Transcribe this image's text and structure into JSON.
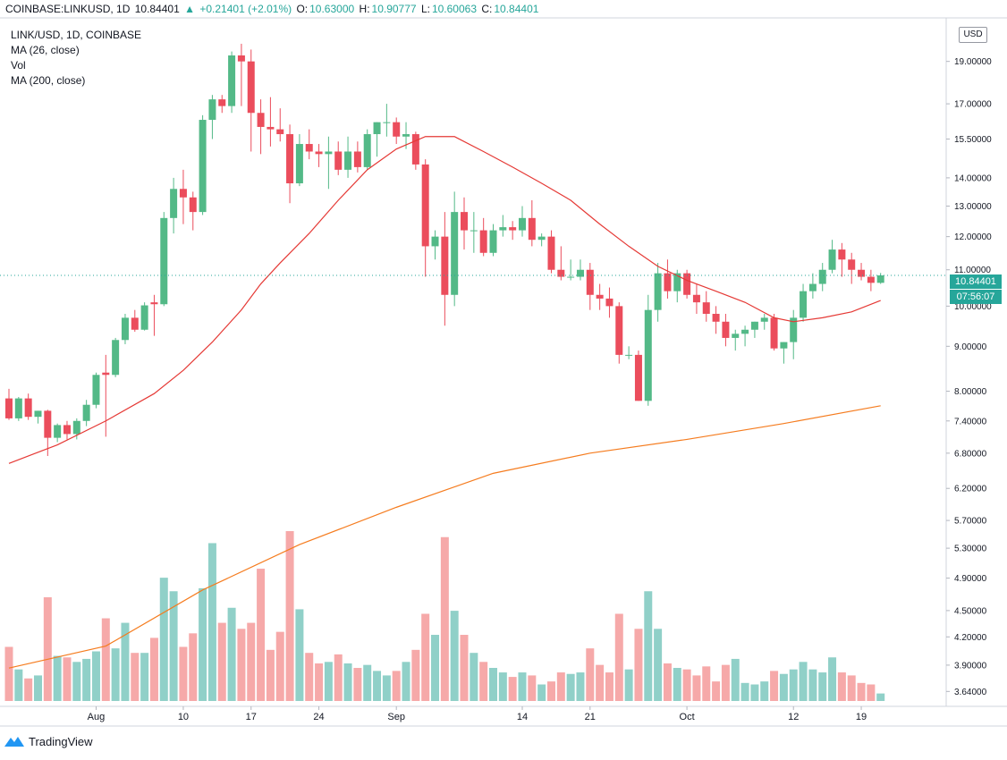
{
  "header": {
    "symbol": "COINBASE:LINKUSD, 1D",
    "last": "10.84401",
    "change": "+0.21401 (+2.01%)",
    "o_label": "O:",
    "o": "10.63000",
    "h_label": "H:",
    "h": "10.90777",
    "l_label": "L:",
    "l": "10.60063",
    "c_label": "C:",
    "c": "10.84401",
    "up_arrow": "▲"
  },
  "legend": {
    "pair": "LINK/USD, 1D, COINBASE",
    "ma26": "MA (26, close)",
    "vol": "Vol",
    "ma200": "MA (200, close)"
  },
  "currency_badge": "USD",
  "last_price_tag": "10.84401",
  "countdown_tag": "07:56:07",
  "brand": "TradingView",
  "colors": {
    "up": "#53b987",
    "down": "#eb4d5c",
    "vol_up": "#90d0c8",
    "vol_down": "#f6a9a9",
    "ma26": "#e53935",
    "ma200": "#f57c1f",
    "last_line": "#26a69a"
  },
  "chart_data": {
    "type": "candlestick",
    "y_scale": "log",
    "ylim": [
      3.55,
      21.0
    ],
    "y_ticks": [
      "19.00000",
      "17.00000",
      "15.50000",
      "14.00000",
      "13.00000",
      "12.00000",
      "11.00000",
      "10.00000",
      "9.00000",
      "8.00000",
      "7.40000",
      "6.80000",
      "6.20000",
      "5.70000",
      "5.30000",
      "4.90000",
      "4.50000",
      "4.20000",
      "3.90000",
      "3.64000"
    ],
    "x_ticks": [
      {
        "label": "Aug",
        "index": 9
      },
      {
        "label": "10",
        "index": 18
      },
      {
        "label": "17",
        "index": 25
      },
      {
        "label": "24",
        "index": 32
      },
      {
        "label": "Sep",
        "index": 40
      },
      {
        "label": "14",
        "index": 53
      },
      {
        "label": "21",
        "index": 60
      },
      {
        "label": "Oct",
        "index": 70
      },
      {
        "label": "12",
        "index": 81
      },
      {
        "label": "19",
        "index": 88
      }
    ],
    "candles": [
      {
        "o": 7.85,
        "h": 8.05,
        "l": 7.42,
        "c": 7.45,
        "v": 0.36
      },
      {
        "o": 7.45,
        "h": 7.88,
        "l": 7.4,
        "c": 7.85,
        "v": 0.21
      },
      {
        "o": 7.85,
        "h": 7.95,
        "l": 7.42,
        "c": 7.48,
        "v": 0.15
      },
      {
        "o": 7.48,
        "h": 7.6,
        "l": 7.35,
        "c": 7.6,
        "v": 0.17
      },
      {
        "o": 7.6,
        "h": 7.62,
        "l": 6.75,
        "c": 7.08,
        "v": 0.69
      },
      {
        "o": 7.08,
        "h": 7.35,
        "l": 7.0,
        "c": 7.32,
        "v": 0.3
      },
      {
        "o": 7.32,
        "h": 7.4,
        "l": 7.05,
        "c": 7.15,
        "v": 0.29
      },
      {
        "o": 7.15,
        "h": 7.45,
        "l": 7.05,
        "c": 7.4,
        "v": 0.26
      },
      {
        "o": 7.4,
        "h": 7.82,
        "l": 7.3,
        "c": 7.72,
        "v": 0.28
      },
      {
        "o": 7.72,
        "h": 8.4,
        "l": 7.65,
        "c": 8.35,
        "v": 0.33
      },
      {
        "o": 8.4,
        "h": 8.8,
        "l": 7.1,
        "c": 8.35,
        "v": 0.55
      },
      {
        "o": 8.35,
        "h": 9.2,
        "l": 8.3,
        "c": 9.15,
        "v": 0.35
      },
      {
        "o": 9.15,
        "h": 9.8,
        "l": 9.05,
        "c": 9.7,
        "v": 0.52
      },
      {
        "o": 9.7,
        "h": 9.9,
        "l": 9.35,
        "c": 9.4,
        "v": 0.32
      },
      {
        "o": 9.4,
        "h": 10.1,
        "l": 9.38,
        "c": 10.02,
        "v": 0.32
      },
      {
        "o": 10.1,
        "h": 10.3,
        "l": 9.25,
        "c": 10.05,
        "v": 0.42
      },
      {
        "o": 10.05,
        "h": 12.8,
        "l": 10.0,
        "c": 12.6,
        "v": 0.82
      },
      {
        "o": 12.6,
        "h": 14.0,
        "l": 12.1,
        "c": 13.6,
        "v": 0.73
      },
      {
        "o": 13.6,
        "h": 14.3,
        "l": 12.4,
        "c": 13.3,
        "v": 0.36
      },
      {
        "o": 13.3,
        "h": 13.5,
        "l": 12.2,
        "c": 12.8,
        "v": 0.45
      },
      {
        "o": 12.8,
        "h": 16.5,
        "l": 12.7,
        "c": 16.3,
        "v": 0.75
      },
      {
        "o": 16.3,
        "h": 17.4,
        "l": 15.5,
        "c": 17.2,
        "v": 1.05
      },
      {
        "o": 17.2,
        "h": 17.4,
        "l": 16.6,
        "c": 16.9,
        "v": 0.52
      },
      {
        "o": 16.9,
        "h": 19.5,
        "l": 16.6,
        "c": 19.3,
        "v": 0.62
      },
      {
        "o": 19.3,
        "h": 19.9,
        "l": 16.9,
        "c": 19.0,
        "v": 0.48
      },
      {
        "o": 19.0,
        "h": 19.6,
        "l": 15.0,
        "c": 16.6,
        "v": 0.52
      },
      {
        "o": 16.6,
        "h": 17.2,
        "l": 14.9,
        "c": 16.0,
        "v": 0.88
      },
      {
        "o": 16.0,
        "h": 17.3,
        "l": 15.2,
        "c": 15.9,
        "v": 0.34
      },
      {
        "o": 15.9,
        "h": 16.8,
        "l": 15.4,
        "c": 15.7,
        "v": 0.46
      },
      {
        "o": 15.7,
        "h": 16.1,
        "l": 13.1,
        "c": 13.8,
        "v": 1.13
      },
      {
        "o": 13.8,
        "h": 15.7,
        "l": 13.7,
        "c": 15.3,
        "v": 0.61
      },
      {
        "o": 15.3,
        "h": 15.9,
        "l": 14.7,
        "c": 15.0,
        "v": 0.32
      },
      {
        "o": 15.0,
        "h": 15.3,
        "l": 14.4,
        "c": 14.9,
        "v": 0.25
      },
      {
        "o": 14.9,
        "h": 15.6,
        "l": 13.6,
        "c": 15.0,
        "v": 0.26
      },
      {
        "o": 15.0,
        "h": 15.4,
        "l": 14.1,
        "c": 14.3,
        "v": 0.31
      },
      {
        "o": 14.3,
        "h": 15.6,
        "l": 14.0,
        "c": 15.0,
        "v": 0.25
      },
      {
        "o": 15.0,
        "h": 15.4,
        "l": 14.2,
        "c": 14.4,
        "v": 0.22
      },
      {
        "o": 14.4,
        "h": 15.9,
        "l": 14.3,
        "c": 15.7,
        "v": 0.24
      },
      {
        "o": 15.7,
        "h": 16.2,
        "l": 14.8,
        "c": 16.2,
        "v": 0.2
      },
      {
        "o": 16.2,
        "h": 17.0,
        "l": 15.6,
        "c": 16.2,
        "v": 0.17
      },
      {
        "o": 16.2,
        "h": 16.4,
        "l": 15.3,
        "c": 15.6,
        "v": 0.2
      },
      {
        "o": 15.6,
        "h": 16.2,
        "l": 15.1,
        "c": 15.7,
        "v": 0.26
      },
      {
        "o": 15.7,
        "h": 15.8,
        "l": 14.3,
        "c": 14.5,
        "v": 0.34
      },
      {
        "o": 14.5,
        "h": 14.7,
        "l": 10.8,
        "c": 11.7,
        "v": 0.58
      },
      {
        "o": 11.7,
        "h": 12.2,
        "l": 11.3,
        "c": 12.0,
        "v": 0.44
      },
      {
        "o": 12.0,
        "h": 12.8,
        "l": 9.5,
        "c": 10.3,
        "v": 1.09
      },
      {
        "o": 10.3,
        "h": 13.5,
        "l": 10.0,
        "c": 12.8,
        "v": 0.6
      },
      {
        "o": 12.8,
        "h": 13.3,
        "l": 11.6,
        "c": 12.2,
        "v": 0.44
      },
      {
        "o": 12.2,
        "h": 12.8,
        "l": 11.5,
        "c": 12.2,
        "v": 0.32
      },
      {
        "o": 12.2,
        "h": 12.6,
        "l": 11.4,
        "c": 11.5,
        "v": 0.26
      },
      {
        "o": 11.5,
        "h": 12.4,
        "l": 11.4,
        "c": 12.2,
        "v": 0.22
      },
      {
        "o": 12.2,
        "h": 12.7,
        "l": 12.0,
        "c": 12.3,
        "v": 0.19
      },
      {
        "o": 12.3,
        "h": 12.5,
        "l": 11.9,
        "c": 12.2,
        "v": 0.16
      },
      {
        "o": 12.2,
        "h": 13.0,
        "l": 12.0,
        "c": 12.6,
        "v": 0.19
      },
      {
        "o": 12.6,
        "h": 13.2,
        "l": 11.7,
        "c": 11.9,
        "v": 0.17
      },
      {
        "o": 11.9,
        "h": 12.1,
        "l": 11.7,
        "c": 12.0,
        "v": 0.11
      },
      {
        "o": 12.0,
        "h": 12.2,
        "l": 10.9,
        "c": 11.0,
        "v": 0.13
      },
      {
        "o": 11.0,
        "h": 11.7,
        "l": 10.7,
        "c": 10.8,
        "v": 0.19
      },
      {
        "o": 10.8,
        "h": 11.3,
        "l": 10.7,
        "c": 10.8,
        "v": 0.18
      },
      {
        "o": 10.8,
        "h": 11.3,
        "l": 10.7,
        "c": 11.0,
        "v": 0.19
      },
      {
        "o": 11.0,
        "h": 11.2,
        "l": 9.9,
        "c": 10.3,
        "v": 0.35
      },
      {
        "o": 10.3,
        "h": 10.6,
        "l": 9.9,
        "c": 10.2,
        "v": 0.24
      },
      {
        "o": 10.2,
        "h": 10.5,
        "l": 9.7,
        "c": 10.0,
        "v": 0.19
      },
      {
        "o": 10.0,
        "h": 10.1,
        "l": 8.6,
        "c": 8.8,
        "v": 0.58
      },
      {
        "o": 8.8,
        "h": 9.0,
        "l": 8.7,
        "c": 8.8,
        "v": 0.21
      },
      {
        "o": 8.8,
        "h": 8.9,
        "l": 7.8,
        "c": 7.8,
        "v": 0.48
      },
      {
        "o": 7.8,
        "h": 10.3,
        "l": 7.7,
        "c": 9.9,
        "v": 0.73
      },
      {
        "o": 9.9,
        "h": 11.2,
        "l": 9.6,
        "c": 10.9,
        "v": 0.48
      },
      {
        "o": 10.9,
        "h": 11.3,
        "l": 10.2,
        "c": 10.4,
        "v": 0.25
      },
      {
        "o": 10.4,
        "h": 11.0,
        "l": 10.1,
        "c": 10.9,
        "v": 0.22
      },
      {
        "o": 10.9,
        "h": 11.0,
        "l": 10.2,
        "c": 10.3,
        "v": 0.21
      },
      {
        "o": 10.3,
        "h": 10.6,
        "l": 9.8,
        "c": 10.1,
        "v": 0.17
      },
      {
        "o": 10.1,
        "h": 10.4,
        "l": 9.6,
        "c": 9.8,
        "v": 0.23
      },
      {
        "o": 9.8,
        "h": 10.0,
        "l": 9.3,
        "c": 9.6,
        "v": 0.13
      },
      {
        "o": 9.6,
        "h": 9.8,
        "l": 9.0,
        "c": 9.2,
        "v": 0.24
      },
      {
        "o": 9.2,
        "h": 9.4,
        "l": 8.9,
        "c": 9.3,
        "v": 0.28
      },
      {
        "o": 9.3,
        "h": 9.5,
        "l": 9.0,
        "c": 9.4,
        "v": 0.12
      },
      {
        "o": 9.4,
        "h": 9.6,
        "l": 9.2,
        "c": 9.6,
        "v": 0.11
      },
      {
        "o": 9.6,
        "h": 9.8,
        "l": 9.4,
        "c": 9.7,
        "v": 0.13
      },
      {
        "o": 9.7,
        "h": 9.8,
        "l": 8.9,
        "c": 8.95,
        "v": 0.2
      },
      {
        "o": 8.95,
        "h": 9.1,
        "l": 8.6,
        "c": 9.1,
        "v": 0.18
      },
      {
        "o": 9.1,
        "h": 9.9,
        "l": 8.7,
        "c": 9.7,
        "v": 0.21
      },
      {
        "o": 9.7,
        "h": 10.6,
        "l": 9.6,
        "c": 10.4,
        "v": 0.26
      },
      {
        "o": 10.4,
        "h": 10.9,
        "l": 10.2,
        "c": 10.6,
        "v": 0.21
      },
      {
        "o": 10.6,
        "h": 11.2,
        "l": 10.4,
        "c": 11.0,
        "v": 0.19
      },
      {
        "o": 11.0,
        "h": 11.9,
        "l": 10.9,
        "c": 11.6,
        "v": 0.29
      },
      {
        "o": 11.6,
        "h": 11.8,
        "l": 10.8,
        "c": 11.3,
        "v": 0.19
      },
      {
        "o": 11.3,
        "h": 11.5,
        "l": 10.6,
        "c": 11.0,
        "v": 0.17
      },
      {
        "o": 11.0,
        "h": 11.2,
        "l": 10.7,
        "c": 10.8,
        "v": 0.12
      },
      {
        "o": 10.8,
        "h": 11.0,
        "l": 10.4,
        "c": 10.63,
        "v": 0.11
      },
      {
        "o": 10.63,
        "h": 10.91,
        "l": 10.6,
        "c": 10.84,
        "v": 0.05
      }
    ],
    "ma26": [
      [
        0,
        6.62
      ],
      [
        5,
        6.95
      ],
      [
        10,
        7.4
      ],
      [
        15,
        7.95
      ],
      [
        18,
        8.45
      ],
      [
        21,
        9.1
      ],
      [
        24,
        9.9
      ],
      [
        26,
        10.6
      ],
      [
        28,
        11.2
      ],
      [
        31,
        12.1
      ],
      [
        34,
        13.2
      ],
      [
        37,
        14.3
      ],
      [
        40,
        15.1
      ],
      [
        43,
        15.6
      ],
      [
        46,
        15.6
      ],
      [
        49,
        15.0
      ],
      [
        52,
        14.4
      ],
      [
        55,
        13.8
      ],
      [
        58,
        13.2
      ],
      [
        61,
        12.4
      ],
      [
        64,
        11.7
      ],
      [
        67,
        11.1
      ],
      [
        70,
        10.7
      ],
      [
        73,
        10.4
      ],
      [
        76,
        10.1
      ],
      [
        79,
        9.7
      ],
      [
        81,
        9.6
      ],
      [
        84,
        9.7
      ],
      [
        87,
        9.85
      ],
      [
        90,
        10.15
      ]
    ],
    "ma200": [
      [
        0,
        3.87
      ],
      [
        10,
        4.1
      ],
      [
        20,
        4.75
      ],
      [
        30,
        5.35
      ],
      [
        40,
        5.9
      ],
      [
        50,
        6.45
      ],
      [
        60,
        6.8
      ],
      [
        70,
        7.05
      ],
      [
        80,
        7.35
      ],
      [
        90,
        7.7
      ]
    ],
    "vol_max": 1.13
  }
}
